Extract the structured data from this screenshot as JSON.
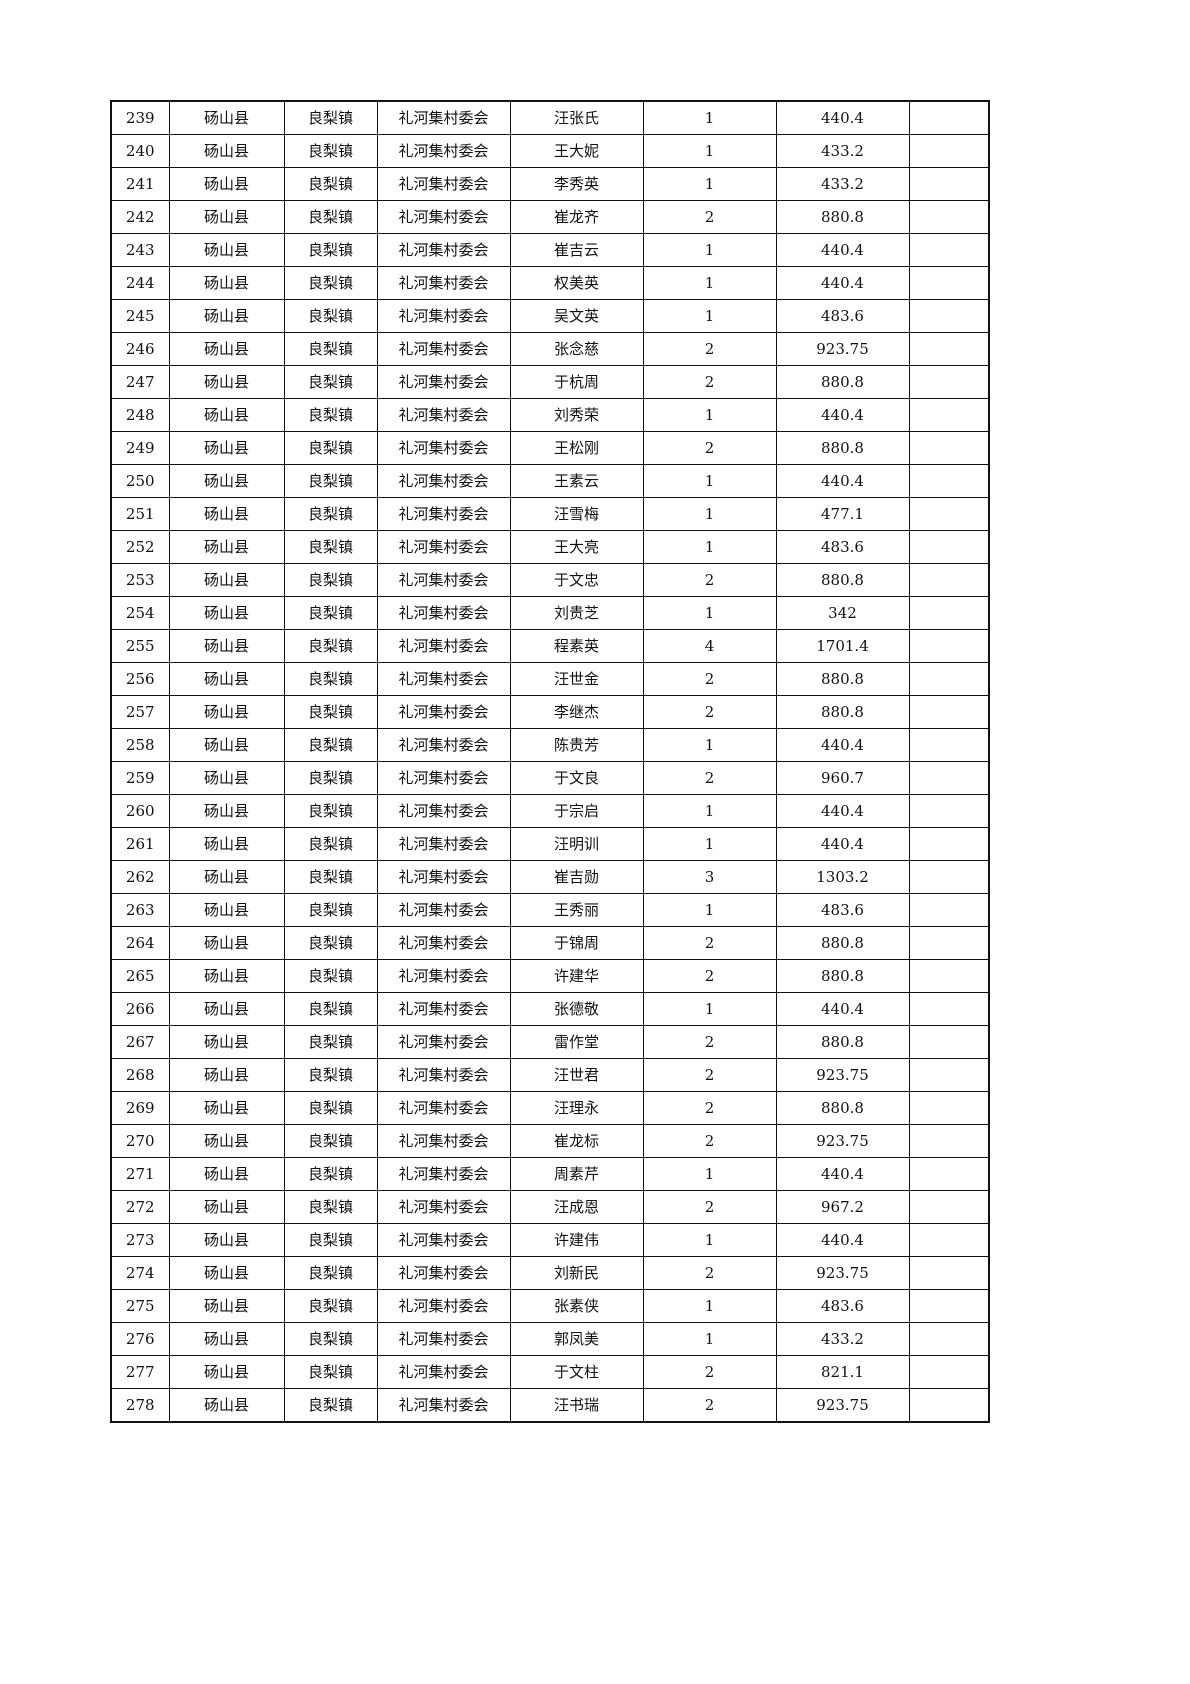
{
  "table": {
    "rows": [
      [
        "239",
        "砀山县",
        "良梨镇",
        "礼河集村委会",
        "汪张氏",
        "1",
        "440.4",
        ""
      ],
      [
        "240",
        "砀山县",
        "良梨镇",
        "礼河集村委会",
        "王大妮",
        "1",
        "433.2",
        ""
      ],
      [
        "241",
        "砀山县",
        "良梨镇",
        "礼河集村委会",
        "李秀英",
        "1",
        "433.2",
        ""
      ],
      [
        "242",
        "砀山县",
        "良梨镇",
        "礼河集村委会",
        "崔龙齐",
        "2",
        "880.8",
        ""
      ],
      [
        "243",
        "砀山县",
        "良梨镇",
        "礼河集村委会",
        "崔吉云",
        "1",
        "440.4",
        ""
      ],
      [
        "244",
        "砀山县",
        "良梨镇",
        "礼河集村委会",
        "权美英",
        "1",
        "440.4",
        ""
      ],
      [
        "245",
        "砀山县",
        "良梨镇",
        "礼河集村委会",
        "吴文英",
        "1",
        "483.6",
        ""
      ],
      [
        "246",
        "砀山县",
        "良梨镇",
        "礼河集村委会",
        "张念慈",
        "2",
        "923.75",
        ""
      ],
      [
        "247",
        "砀山县",
        "良梨镇",
        "礼河集村委会",
        "于杭周",
        "2",
        "880.8",
        ""
      ],
      [
        "248",
        "砀山县",
        "良梨镇",
        "礼河集村委会",
        "刘秀荣",
        "1",
        "440.4",
        ""
      ],
      [
        "249",
        "砀山县",
        "良梨镇",
        "礼河集村委会",
        "王松刚",
        "2",
        "880.8",
        ""
      ],
      [
        "250",
        "砀山县",
        "良梨镇",
        "礼河集村委会",
        "王素云",
        "1",
        "440.4",
        ""
      ],
      [
        "251",
        "砀山县",
        "良梨镇",
        "礼河集村委会",
        "汪雪梅",
        "1",
        "477.1",
        ""
      ],
      [
        "252",
        "砀山县",
        "良梨镇",
        "礼河集村委会",
        "王大亮",
        "1",
        "483.6",
        ""
      ],
      [
        "253",
        "砀山县",
        "良梨镇",
        "礼河集村委会",
        "于文忠",
        "2",
        "880.8",
        ""
      ],
      [
        "254",
        "砀山县",
        "良梨镇",
        "礼河集村委会",
        "刘贵芝",
        "1",
        "342",
        ""
      ],
      [
        "255",
        "砀山县",
        "良梨镇",
        "礼河集村委会",
        "程素英",
        "4",
        "1701.4",
        ""
      ],
      [
        "256",
        "砀山县",
        "良梨镇",
        "礼河集村委会",
        "汪世金",
        "2",
        "880.8",
        ""
      ],
      [
        "257",
        "砀山县",
        "良梨镇",
        "礼河集村委会",
        "李继杰",
        "2",
        "880.8",
        ""
      ],
      [
        "258",
        "砀山县",
        "良梨镇",
        "礼河集村委会",
        "陈贵芳",
        "1",
        "440.4",
        ""
      ],
      [
        "259",
        "砀山县",
        "良梨镇",
        "礼河集村委会",
        "于文良",
        "2",
        "960.7",
        ""
      ],
      [
        "260",
        "砀山县",
        "良梨镇",
        "礼河集村委会",
        "于宗启",
        "1",
        "440.4",
        ""
      ],
      [
        "261",
        "砀山县",
        "良梨镇",
        "礼河集村委会",
        "汪明训",
        "1",
        "440.4",
        ""
      ],
      [
        "262",
        "砀山县",
        "良梨镇",
        "礼河集村委会",
        "崔吉勋",
        "3",
        "1303.2",
        ""
      ],
      [
        "263",
        "砀山县",
        "良梨镇",
        "礼河集村委会",
        "王秀丽",
        "1",
        "483.6",
        ""
      ],
      [
        "264",
        "砀山县",
        "良梨镇",
        "礼河集村委会",
        "于锦周",
        "2",
        "880.8",
        ""
      ],
      [
        "265",
        "砀山县",
        "良梨镇",
        "礼河集村委会",
        "许建华",
        "2",
        "880.8",
        ""
      ],
      [
        "266",
        "砀山县",
        "良梨镇",
        "礼河集村委会",
        "张德敬",
        "1",
        "440.4",
        ""
      ],
      [
        "267",
        "砀山县",
        "良梨镇",
        "礼河集村委会",
        "雷作堂",
        "2",
        "880.8",
        ""
      ],
      [
        "268",
        "砀山县",
        "良梨镇",
        "礼河集村委会",
        "汪世君",
        "2",
        "923.75",
        ""
      ],
      [
        "269",
        "砀山县",
        "良梨镇",
        "礼河集村委会",
        "汪理永",
        "2",
        "880.8",
        ""
      ],
      [
        "270",
        "砀山县",
        "良梨镇",
        "礼河集村委会",
        "崔龙标",
        "2",
        "923.75",
        ""
      ],
      [
        "271",
        "砀山县",
        "良梨镇",
        "礼河集村委会",
        "周素芹",
        "1",
        "440.4",
        ""
      ],
      [
        "272",
        "砀山县",
        "良梨镇",
        "礼河集村委会",
        "汪成恩",
        "2",
        "967.2",
        ""
      ],
      [
        "273",
        "砀山县",
        "良梨镇",
        "礼河集村委会",
        "许建伟",
        "1",
        "440.4",
        ""
      ],
      [
        "274",
        "砀山县",
        "良梨镇",
        "礼河集村委会",
        "刘新民",
        "2",
        "923.75",
        ""
      ],
      [
        "275",
        "砀山县",
        "良梨镇",
        "礼河集村委会",
        "张素侠",
        "1",
        "483.6",
        ""
      ],
      [
        "276",
        "砀山县",
        "良梨镇",
        "礼河集村委会",
        "郭凤美",
        "1",
        "433.2",
        ""
      ],
      [
        "277",
        "砀山县",
        "良梨镇",
        "礼河集村委会",
        "于文柱",
        "2",
        "821.1",
        ""
      ],
      [
        "278",
        "砀山县",
        "良梨镇",
        "礼河集村委会",
        "汪书瑞",
        "2",
        "923.75",
        ""
      ]
    ]
  }
}
